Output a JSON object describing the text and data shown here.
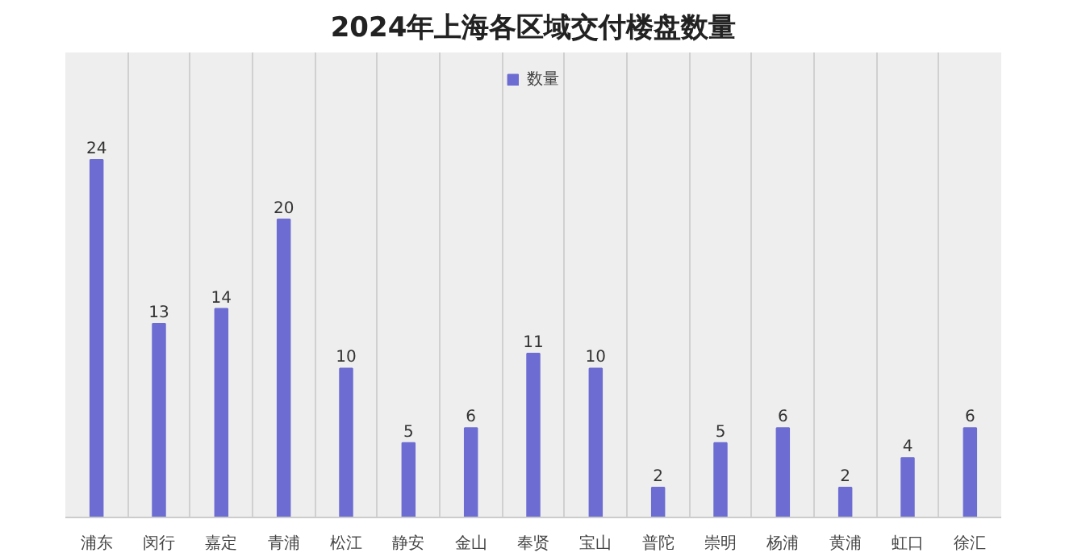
{
  "chart_data": {
    "type": "bar",
    "title": "2024年上海各区域交付楼盘数量",
    "categories": [
      "浦东",
      "闵行",
      "嘉定",
      "青浦",
      "松江",
      "静安",
      "金山",
      "奉贤",
      "宝山",
      "普陀",
      "崇明",
      "杨浦",
      "黄浦",
      "虹口",
      "徐汇"
    ],
    "series": [
      {
        "name": "数量",
        "color": "#6c6cd2",
        "values": [
          24,
          13,
          14,
          20,
          10,
          5,
          6,
          11,
          10,
          2,
          5,
          6,
          2,
          4,
          6
        ]
      }
    ],
    "data_labels": true,
    "grid": "x",
    "legend": "top"
  }
}
